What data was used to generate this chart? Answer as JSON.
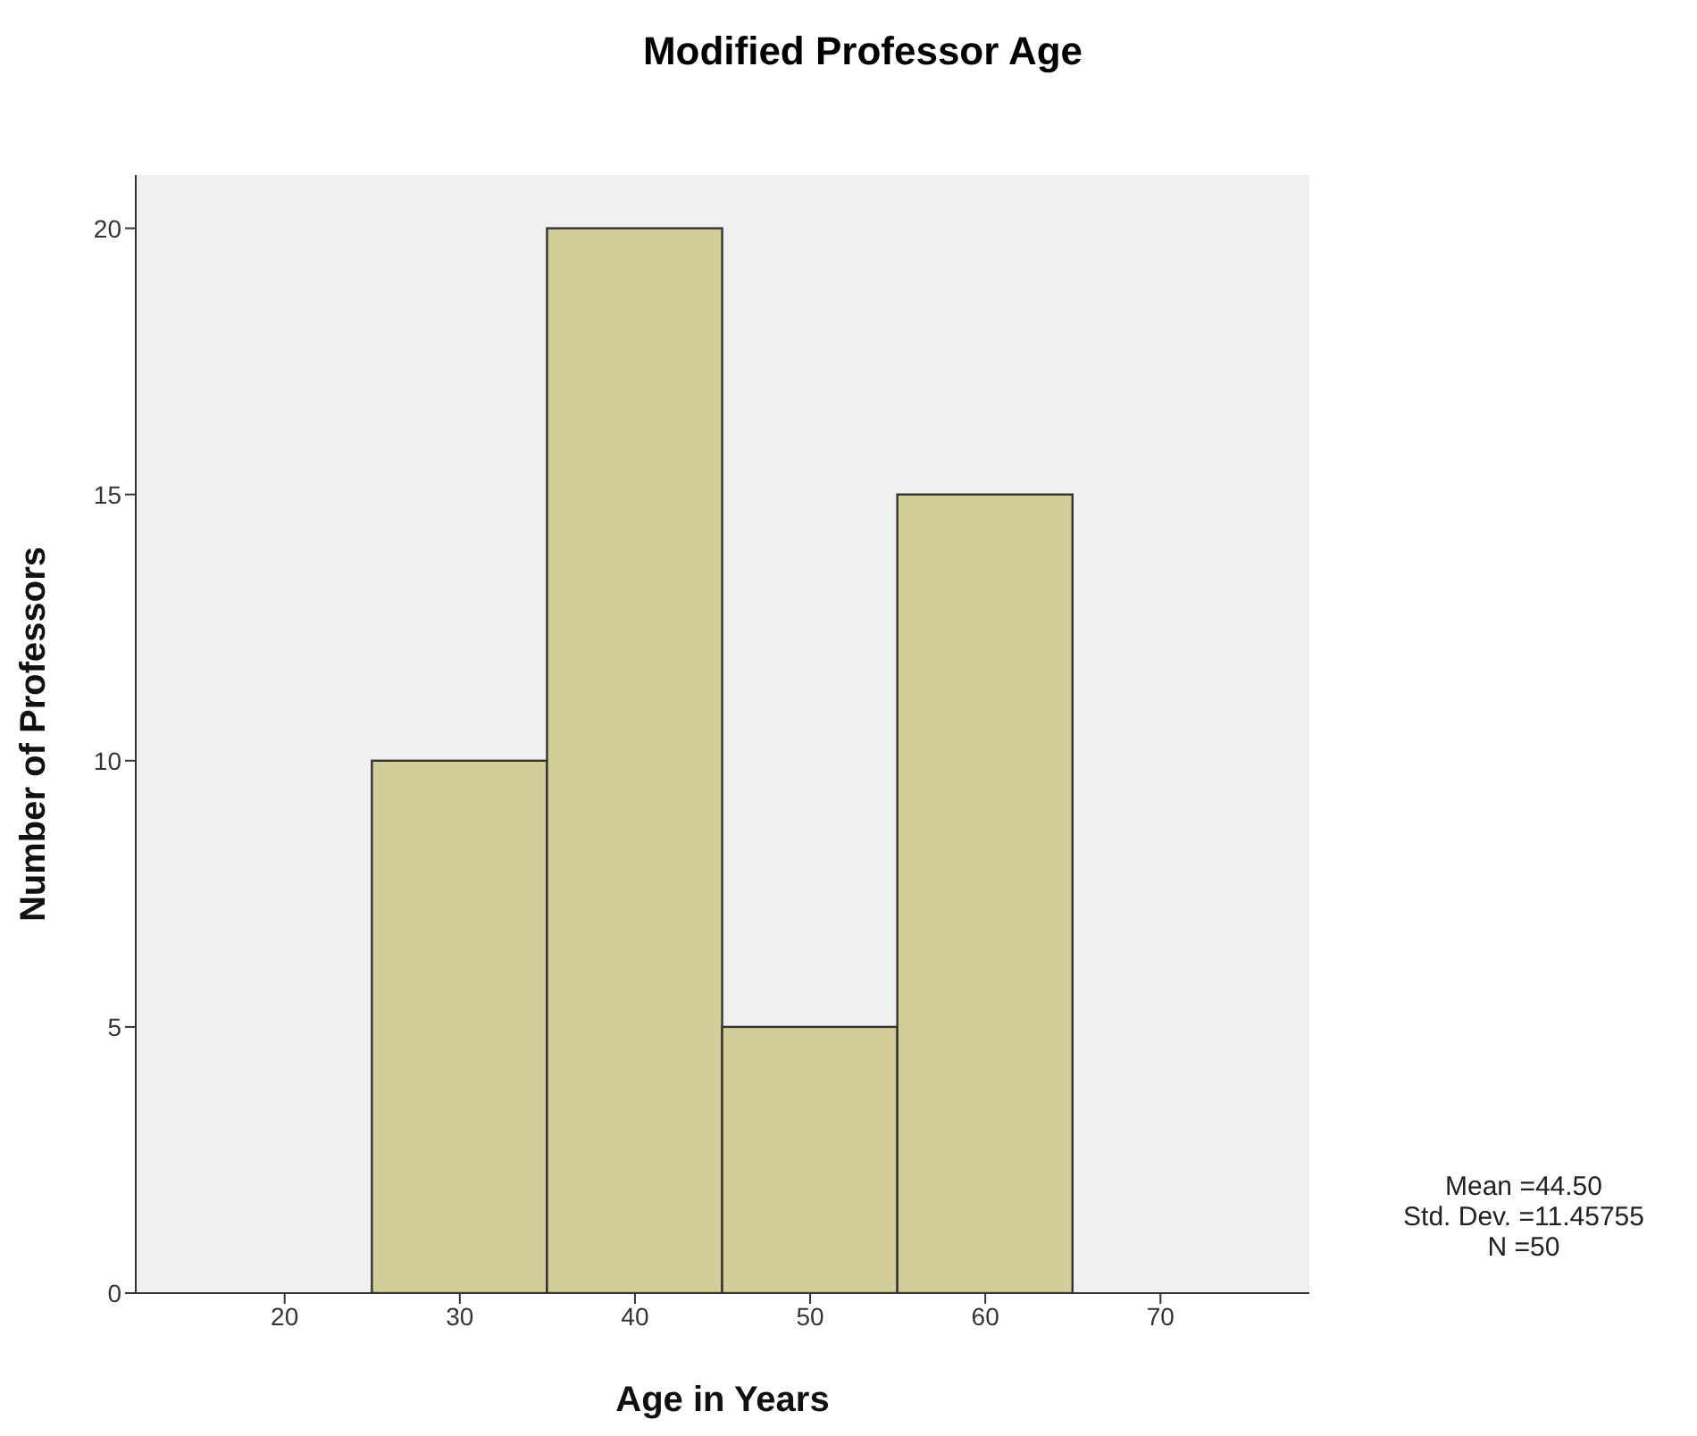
{
  "chart_data": {
    "type": "histogram",
    "title": "Modified Professor Age",
    "xlabel": "Age in Years",
    "ylabel": "Number of Professors",
    "bins": [
      25,
      35,
      45,
      55,
      65
    ],
    "values": [
      10,
      20,
      5,
      15
    ],
    "color": "#d3ce97",
    "xlim": [
      11.5,
      78.5
    ],
    "xticks": [
      20,
      30,
      40,
      50,
      60,
      70
    ],
    "ylim": [
      0,
      21
    ],
    "yticks": [
      0,
      5,
      10,
      15,
      20
    ],
    "annotations": [
      "Mean =44.50",
      "Std. Dev. =11.45755",
      "N =50"
    ]
  }
}
